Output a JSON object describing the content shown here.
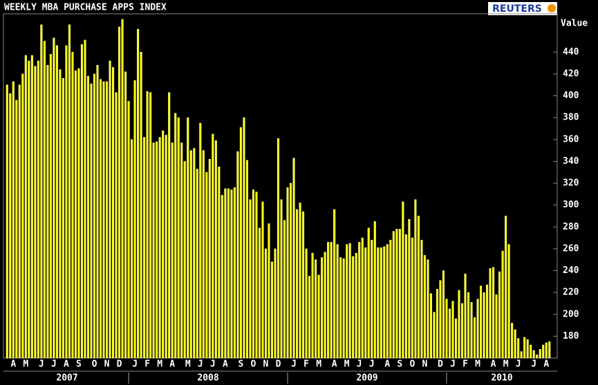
{
  "chart_data": {
    "type": "bar",
    "title": "WEEKLY MBA PURCHASE APPS INDEX",
    "source": "REUTERS",
    "y_label": "Value",
    "categories": [
      null,
      null,
      "A",
      null,
      null,
      null,
      "M",
      null,
      null,
      null,
      null,
      "J",
      null,
      null,
      null,
      "J",
      null,
      null,
      null,
      "A",
      null,
      null,
      null,
      "S",
      null,
      null,
      null,
      null,
      "O",
      null,
      null,
      null,
      "N",
      null,
      null,
      null,
      "D",
      null,
      null,
      null,
      null,
      "J",
      null,
      null,
      null,
      "F",
      null,
      null,
      null,
      "M",
      null,
      null,
      null,
      "A",
      null,
      null,
      null,
      null,
      "M",
      null,
      null,
      null,
      "J",
      null,
      null,
      null,
      "J",
      null,
      null,
      null,
      "A",
      null,
      null,
      null,
      null,
      "S",
      null,
      null,
      null,
      "O",
      null,
      null,
      null,
      "N",
      null,
      null,
      null,
      "D",
      null,
      null,
      null,
      null,
      "J",
      null,
      null,
      null,
      "F",
      null,
      null,
      null,
      "M",
      null,
      null,
      null,
      null,
      "A",
      null,
      null,
      null,
      "M",
      null,
      null,
      null,
      "J",
      null,
      null,
      null,
      "J",
      null,
      null,
      null,
      null,
      "A",
      null,
      null,
      null,
      "S",
      null,
      null,
      null,
      "O",
      null,
      null,
      null,
      "N",
      null,
      null,
      null,
      null,
      "D",
      null,
      null,
      null,
      "J",
      null,
      null,
      null,
      "F",
      null,
      null,
      null,
      "M",
      null,
      null,
      null,
      null,
      "A",
      null,
      null,
      null,
      "M",
      null,
      null,
      null,
      "J",
      null,
      null,
      null,
      null,
      "J",
      null,
      null,
      null,
      "A",
      null
    ],
    "years": [
      "2007",
      "2008",
      "2009",
      "2010"
    ],
    "values": [
      410,
      402,
      413,
      396,
      410,
      420,
      437,
      432,
      437,
      427,
      432,
      465,
      450,
      428,
      438,
      453,
      446,
      424,
      416,
      446,
      465,
      440,
      423,
      425,
      447,
      451,
      418,
      411,
      420,
      428,
      415,
      413,
      413,
      432,
      426,
      403,
      463,
      470,
      422,
      395,
      360,
      414,
      461,
      440,
      362,
      404,
      403,
      357,
      358,
      362,
      368,
      364,
      403,
      357,
      384,
      380,
      357,
      340,
      380,
      350,
      352,
      333,
      375,
      350,
      330,
      342,
      365,
      359,
      335,
      309,
      315,
      315,
      314,
      316,
      349,
      371,
      380,
      341,
      305,
      314,
      312,
      279,
      303,
      260,
      283,
      248,
      260,
      361,
      305,
      286,
      316,
      320,
      343,
      296,
      302,
      294,
      260,
      235,
      256,
      250,
      236,
      252,
      257,
      266,
      266,
      296,
      264,
      252,
      251,
      264,
      265,
      253,
      256,
      266,
      270,
      261,
      279,
      268,
      285,
      261,
      261,
      262,
      264,
      268,
      276,
      278,
      278,
      303,
      273,
      287,
      270,
      305,
      290,
      268,
      254,
      250,
      219,
      202,
      223,
      231,
      240,
      214,
      205,
      212,
      196,
      222,
      210,
      237,
      220,
      211,
      197,
      214,
      226,
      220,
      227,
      242,
      243,
      218,
      239,
      258,
      290,
      264,
      192,
      186,
      178,
      166,
      179,
      177,
      172,
      167,
      163,
      168,
      172,
      174,
      175
    ],
    "color": "#ffff00",
    "ylim": [
      160,
      475
    ],
    "yticks": [
      180,
      200,
      220,
      240,
      260,
      280,
      300,
      320,
      340,
      360,
      380,
      400,
      420,
      440
    ],
    "grid": false
  }
}
